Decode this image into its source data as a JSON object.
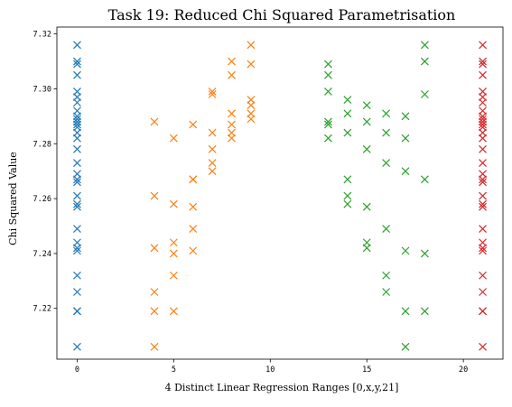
{
  "chart_data": {
    "type": "scatter",
    "title": "Task 19: Reduced Chi Squared Parametrisation",
    "xlabel": "4 Distinct Linear Regression Ranges [0,x,y,21]",
    "ylabel": "Chi Squared Value",
    "xlim": [
      -1.05,
      22.05
    ],
    "ylim": [
      7.2015,
      7.3225
    ],
    "xticks": [
      0,
      5,
      10,
      15,
      20
    ],
    "yticks": [
      7.22,
      7.24,
      7.26,
      7.28,
      7.3,
      7.32
    ],
    "xtick_labels": [
      "0",
      "5",
      "10",
      "15",
      "20"
    ],
    "ytick_labels": [
      "7.22",
      "7.24",
      "7.26",
      "7.28",
      "7.30",
      "7.32"
    ],
    "marker": "x",
    "grid": false,
    "legend": "none",
    "series": [
      {
        "color": "#1f77b4",
        "points": [
          [
            0,
            7.316
          ],
          [
            0,
            7.31
          ],
          [
            0,
            7.309
          ],
          [
            0,
            7.305
          ],
          [
            0,
            7.299
          ],
          [
            0,
            7.297
          ],
          [
            0,
            7.295
          ],
          [
            0,
            7.292
          ],
          [
            0,
            7.29
          ],
          [
            0,
            7.289
          ],
          [
            0,
            7.288
          ],
          [
            0,
            7.287
          ],
          [
            0,
            7.286
          ],
          [
            0,
            7.284
          ],
          [
            0,
            7.282
          ],
          [
            0,
            7.278
          ],
          [
            0,
            7.273
          ],
          [
            0,
            7.269
          ],
          [
            0,
            7.267
          ],
          [
            0,
            7.266
          ],
          [
            0,
            7.261
          ],
          [
            0,
            7.258
          ],
          [
            0,
            7.257
          ],
          [
            0,
            7.249
          ],
          [
            0,
            7.244
          ],
          [
            0,
            7.242
          ],
          [
            0,
            7.241
          ],
          [
            0,
            7.232
          ],
          [
            0,
            7.226
          ],
          [
            0,
            7.219
          ],
          [
            0,
            7.219
          ],
          [
            0,
            7.206
          ]
        ]
      },
      {
        "color": "#ff7f0e",
        "points": [
          [
            4,
            7.288
          ],
          [
            4,
            7.261
          ],
          [
            4,
            7.242
          ],
          [
            4,
            7.226
          ],
          [
            4,
            7.219
          ],
          [
            4,
            7.206
          ],
          [
            5,
            7.282
          ],
          [
            5,
            7.258
          ],
          [
            5,
            7.244
          ],
          [
            5,
            7.24
          ],
          [
            5,
            7.232
          ],
          [
            5,
            7.219
          ],
          [
            6,
            7.287
          ],
          [
            6,
            7.267
          ],
          [
            6,
            7.267
          ],
          [
            6,
            7.257
          ],
          [
            6,
            7.249
          ],
          [
            6,
            7.241
          ],
          [
            7,
            7.299
          ],
          [
            7,
            7.298
          ],
          [
            7,
            7.284
          ],
          [
            7,
            7.278
          ],
          [
            7,
            7.273
          ],
          [
            7,
            7.27
          ],
          [
            8,
            7.31
          ],
          [
            8,
            7.305
          ],
          [
            8,
            7.291
          ],
          [
            8,
            7.287
          ],
          [
            8,
            7.284
          ],
          [
            8,
            7.282
          ],
          [
            9,
            7.316
          ],
          [
            9,
            7.309
          ],
          [
            9,
            7.296
          ],
          [
            9,
            7.294
          ],
          [
            9,
            7.291
          ],
          [
            9,
            7.289
          ]
        ]
      },
      {
        "color": "#2ca02c",
        "points": [
          [
            13,
            7.309
          ],
          [
            13,
            7.305
          ],
          [
            13,
            7.299
          ],
          [
            13,
            7.288
          ],
          [
            13,
            7.287
          ],
          [
            13,
            7.282
          ],
          [
            14,
            7.296
          ],
          [
            14,
            7.291
          ],
          [
            14,
            7.284
          ],
          [
            14,
            7.267
          ],
          [
            14,
            7.261
          ],
          [
            14,
            7.258
          ],
          [
            15,
            7.294
          ],
          [
            15,
            7.288
          ],
          [
            15,
            7.278
          ],
          [
            15,
            7.257
          ],
          [
            15,
            7.244
          ],
          [
            15,
            7.242
          ],
          [
            16,
            7.291
          ],
          [
            16,
            7.284
          ],
          [
            16,
            7.273
          ],
          [
            16,
            7.249
          ],
          [
            16,
            7.232
          ],
          [
            16,
            7.226
          ],
          [
            17,
            7.29
          ],
          [
            17,
            7.282
          ],
          [
            17,
            7.27
          ],
          [
            17,
            7.241
          ],
          [
            17,
            7.219
          ],
          [
            17,
            7.206
          ],
          [
            18,
            7.316
          ],
          [
            18,
            7.31
          ],
          [
            18,
            7.298
          ],
          [
            18,
            7.267
          ],
          [
            18,
            7.24
          ],
          [
            18,
            7.219
          ]
        ]
      },
      {
        "color": "#d62728",
        "points": [
          [
            21,
            7.316
          ],
          [
            21,
            7.31
          ],
          [
            21,
            7.309
          ],
          [
            21,
            7.305
          ],
          [
            21,
            7.299
          ],
          [
            21,
            7.297
          ],
          [
            21,
            7.295
          ],
          [
            21,
            7.292
          ],
          [
            21,
            7.29
          ],
          [
            21,
            7.289
          ],
          [
            21,
            7.288
          ],
          [
            21,
            7.287
          ],
          [
            21,
            7.286
          ],
          [
            21,
            7.284
          ],
          [
            21,
            7.282
          ],
          [
            21,
            7.278
          ],
          [
            21,
            7.273
          ],
          [
            21,
            7.269
          ],
          [
            21,
            7.267
          ],
          [
            21,
            7.266
          ],
          [
            21,
            7.261
          ],
          [
            21,
            7.258
          ],
          [
            21,
            7.257
          ],
          [
            21,
            7.249
          ],
          [
            21,
            7.244
          ],
          [
            21,
            7.242
          ],
          [
            21,
            7.241
          ],
          [
            21,
            7.232
          ],
          [
            21,
            7.226
          ],
          [
            21,
            7.219
          ],
          [
            21,
            7.219
          ],
          [
            21,
            7.206
          ]
        ]
      }
    ]
  }
}
